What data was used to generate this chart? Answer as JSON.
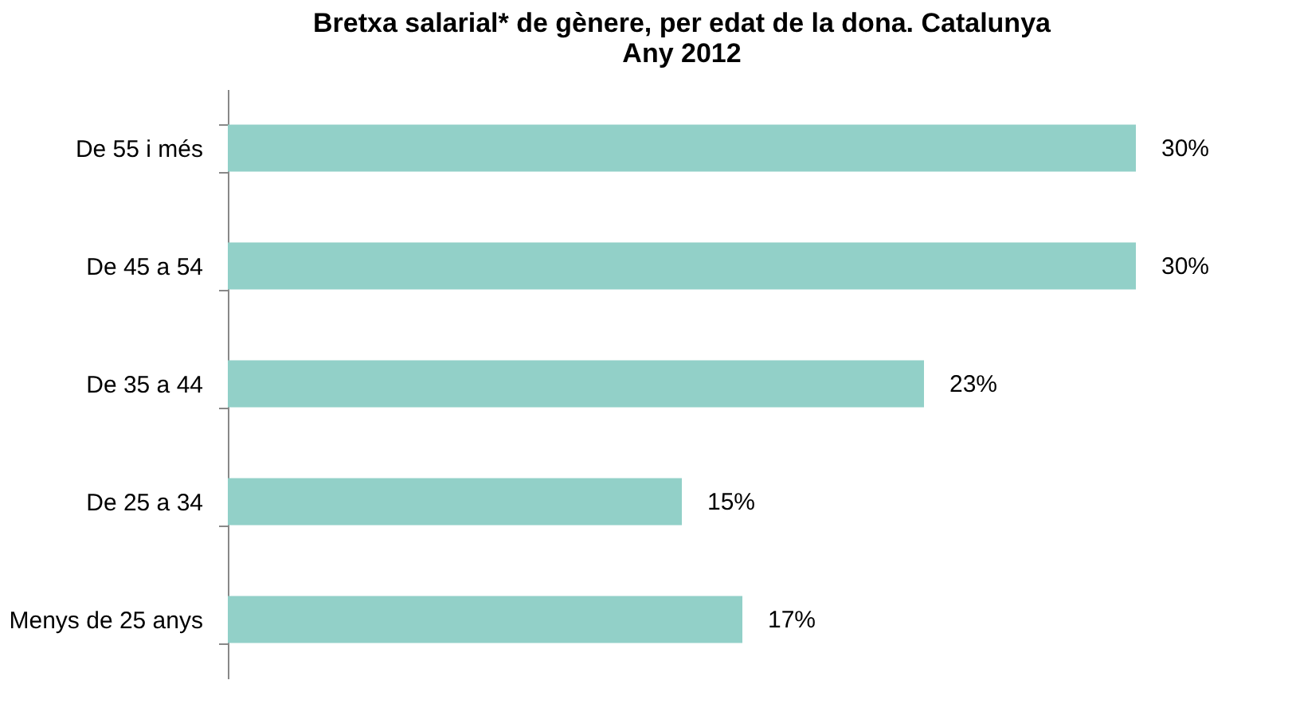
{
  "chart_data": {
    "type": "bar",
    "orientation": "horizontal",
    "title": "Bretxa salarial* de gènere, per edat de la dona. Catalunya",
    "subtitle": "Any 2012",
    "categories": [
      "De 55 i més",
      "De 45 a 54",
      "De 35 a 44",
      "De 25 a 34",
      "Menys de 25 anys"
    ],
    "values": [
      30,
      30,
      23,
      15,
      17
    ],
    "value_labels": [
      "30%",
      "30%",
      "23%",
      "15%",
      "17%"
    ],
    "color": "#92d0c8"
  }
}
